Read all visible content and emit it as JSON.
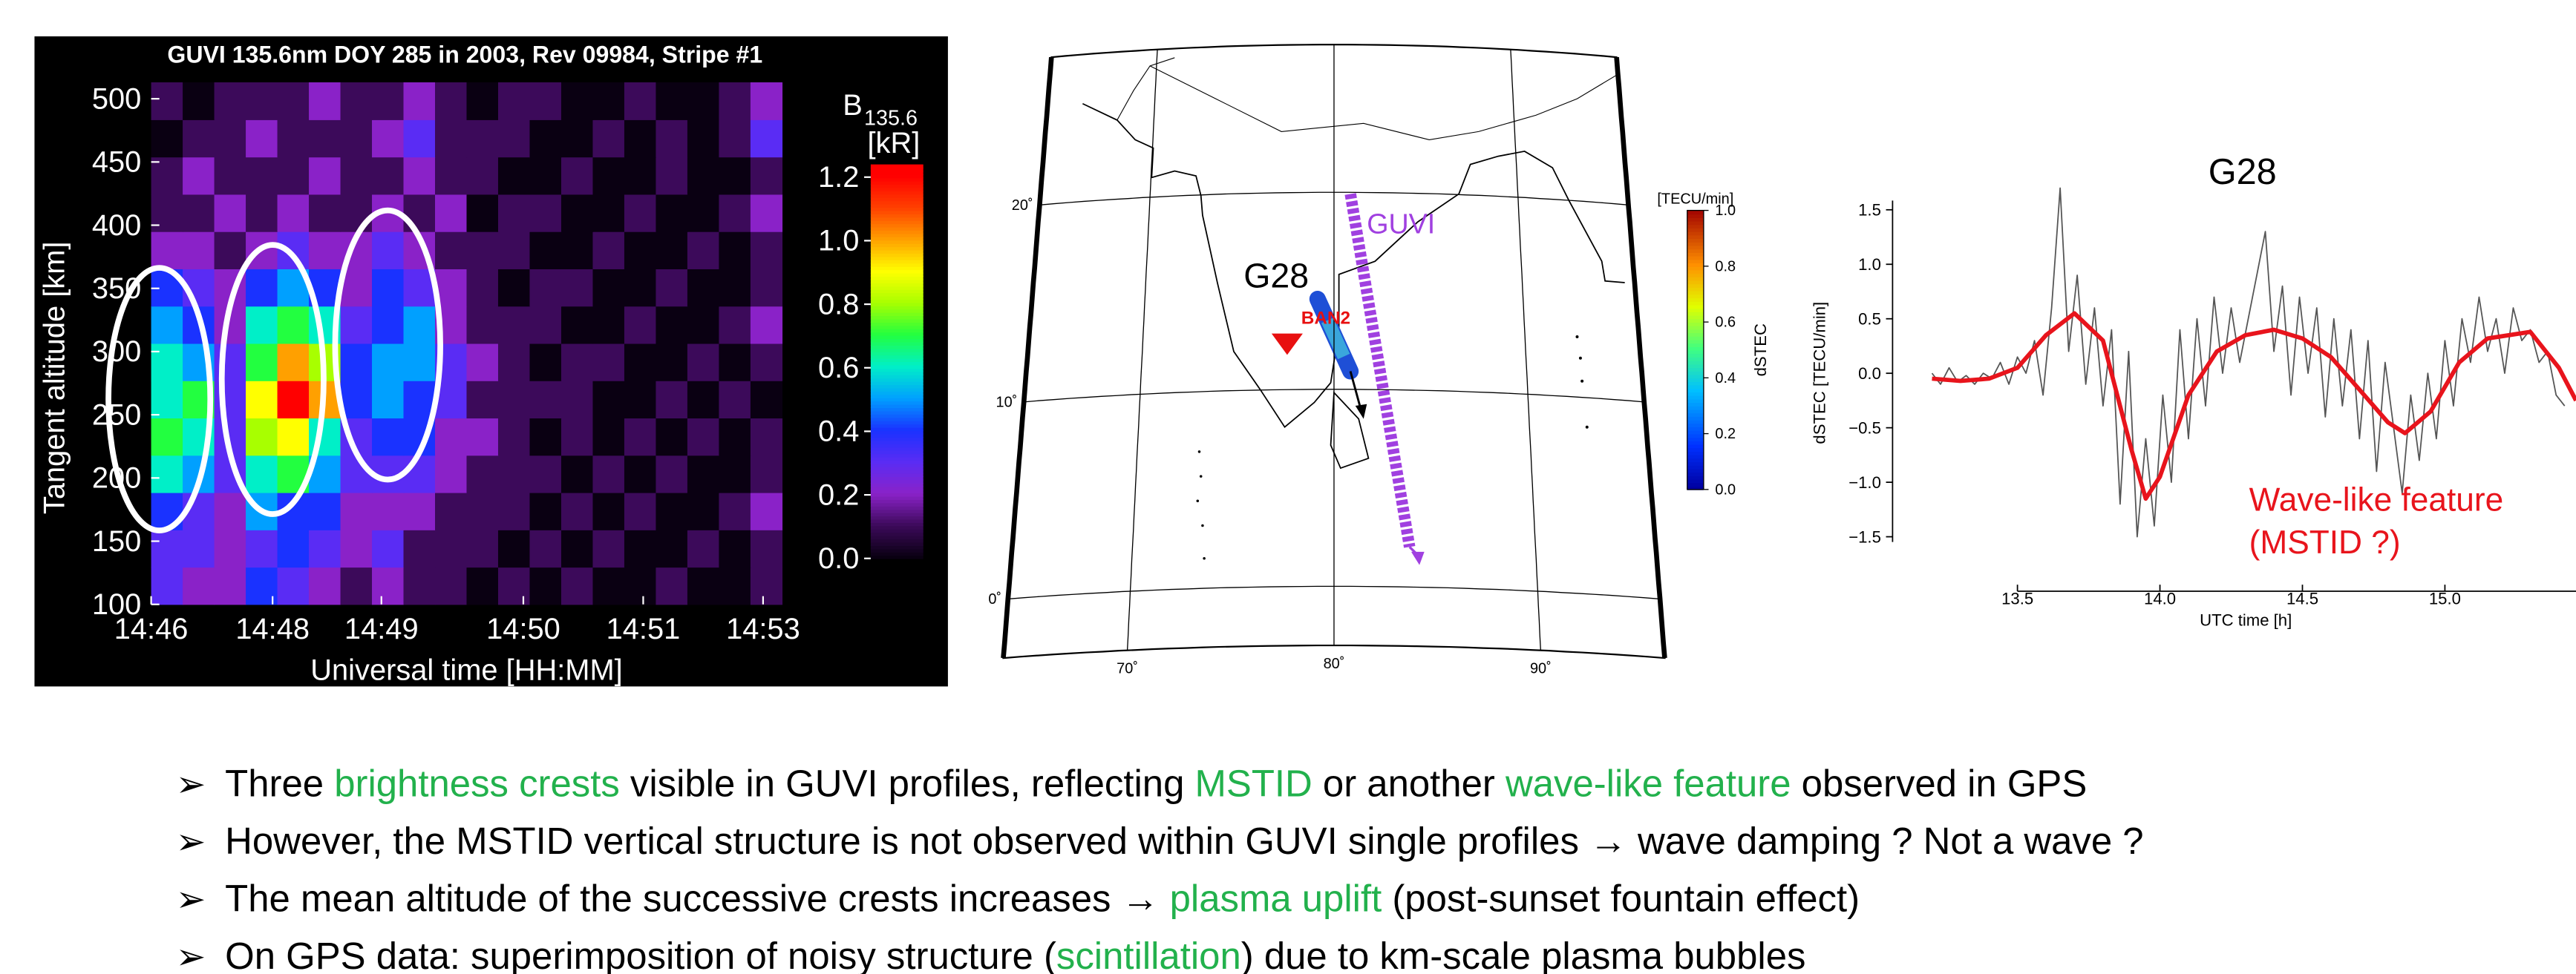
{
  "chart_data": [
    {
      "type": "heatmap",
      "title": "GUVI 135.6nm DOY 285 in 2003, Rev 09984, Stripe #1",
      "xlabel": "Universal time [HH:MM]",
      "ylabel": "Tangent altitude [km]",
      "xlim": [
        0,
        20
      ],
      "ylim": [
        100,
        513
      ],
      "xticks": [
        {
          "value": 0,
          "label": "14:46"
        },
        {
          "value": 3.85,
          "label": "14:48"
        },
        {
          "value": 7.3,
          "label": "14:49"
        },
        {
          "value": 11.8,
          "label": "14:50"
        },
        {
          "value": 15.6,
          "label": "14:51"
        },
        {
          "value": 19.4,
          "label": "14:53"
        }
      ],
      "yticks": [
        100,
        150,
        200,
        250,
        300,
        350,
        400,
        450,
        500
      ],
      "values": [
        [
          0.3,
          0.2,
          0.2,
          0.4,
          0.3,
          0.2,
          0.1,
          0.2,
          0.1,
          0.1,
          0.0,
          0.1,
          0.0,
          0.1,
          0.0,
          0.0,
          0.1,
          0.0,
          0.0,
          0.1
        ],
        [
          0.3,
          0.3,
          0.2,
          0.3,
          0.4,
          0.3,
          0.2,
          0.3,
          0.1,
          0.1,
          0.1,
          0.0,
          0.1,
          0.0,
          0.1,
          0.0,
          0.0,
          0.1,
          0.0,
          0.1
        ],
        [
          0.4,
          0.3,
          0.2,
          0.5,
          0.4,
          0.4,
          0.2,
          0.2,
          0.2,
          0.1,
          0.1,
          0.1,
          0.0,
          0.1,
          0.0,
          0.1,
          0.0,
          0.0,
          0.1,
          0.2
        ],
        [
          0.6,
          0.5,
          0.3,
          0.6,
          0.7,
          0.5,
          0.3,
          0.3,
          0.3,
          0.2,
          0.1,
          0.1,
          0.1,
          0.0,
          0.1,
          0.0,
          0.1,
          0.0,
          0.0,
          0.1
        ],
        [
          0.7,
          0.6,
          0.3,
          0.8,
          0.9,
          0.6,
          0.3,
          0.4,
          0.4,
          0.2,
          0.2,
          0.1,
          0.0,
          0.1,
          0.0,
          0.1,
          0.0,
          0.1,
          0.0,
          0.1
        ],
        [
          0.6,
          0.7,
          0.3,
          0.9,
          1.2,
          1.0,
          0.4,
          0.5,
          0.4,
          0.3,
          0.1,
          0.1,
          0.1,
          0.1,
          0.0,
          0.0,
          0.1,
          0.0,
          0.1,
          0.0
        ],
        [
          0.6,
          0.5,
          0.3,
          0.7,
          1.0,
          0.8,
          0.4,
          0.5,
          0.5,
          0.3,
          0.2,
          0.1,
          0.0,
          0.1,
          0.1,
          0.0,
          0.0,
          0.1,
          0.0,
          0.1
        ],
        [
          0.5,
          0.4,
          0.2,
          0.6,
          0.7,
          0.6,
          0.3,
          0.4,
          0.5,
          0.2,
          0.1,
          0.1,
          0.1,
          0.0,
          0.0,
          0.1,
          0.0,
          0.0,
          0.1,
          0.2
        ],
        [
          0.4,
          0.3,
          0.2,
          0.4,
          0.5,
          0.4,
          0.2,
          0.4,
          0.3,
          0.2,
          0.1,
          0.0,
          0.1,
          0.1,
          0.0,
          0.0,
          0.1,
          0.0,
          0.0,
          0.1
        ],
        [
          0.2,
          0.2,
          0.1,
          0.2,
          0.3,
          0.2,
          0.2,
          0.3,
          0.2,
          0.1,
          0.1,
          0.1,
          0.0,
          0.0,
          0.1,
          0.0,
          0.0,
          0.1,
          0.0,
          0.1
        ],
        [
          0.1,
          0.1,
          0.2,
          0.1,
          0.2,
          0.1,
          0.1,
          0.2,
          0.1,
          0.2,
          0.0,
          0.1,
          0.1,
          0.0,
          0.0,
          0.1,
          0.0,
          0.0,
          0.1,
          0.2
        ],
        [
          0.1,
          0.2,
          0.1,
          0.1,
          0.1,
          0.2,
          0.1,
          0.1,
          0.2,
          0.1,
          0.1,
          0.0,
          0.0,
          0.1,
          0.0,
          0.0,
          0.1,
          0.0,
          0.0,
          0.1
        ],
        [
          0.0,
          0.1,
          0.1,
          0.2,
          0.1,
          0.1,
          0.1,
          0.2,
          0.3,
          0.1,
          0.1,
          0.1,
          0.0,
          0.0,
          0.1,
          0.0,
          0.1,
          0.0,
          0.1,
          0.3
        ],
        [
          0.1,
          0.0,
          0.1,
          0.1,
          0.1,
          0.2,
          0.1,
          0.1,
          0.2,
          0.1,
          0.0,
          0.1,
          0.1,
          0.0,
          0.0,
          0.1,
          0.0,
          0.0,
          0.1,
          0.2
        ]
      ],
      "colorbar": {
        "label": "B",
        "label_sub": "135.6",
        "unit": "[kR]",
        "clim": [
          0,
          1.24
        ],
        "ticks": [
          {
            "value": 0,
            "label": "0.0"
          },
          0.2,
          0.4,
          0.6,
          0.8,
          {
            "value": 1,
            "label": "1.0"
          },
          1.2
        ]
      }
    },
    {
      "type": "map",
      "lonlim": [
        64,
        96
      ],
      "latlim": [
        -3,
        27.5
      ],
      "lonticks": [
        {
          "value": 70,
          "label": "70˚"
        },
        {
          "value": 80,
          "label": "80˚"
        },
        {
          "value": 90,
          "label": "90˚"
        }
      ],
      "latticks": [
        {
          "value": 0,
          "label": "0˚"
        },
        {
          "value": 10,
          "label": "10˚"
        },
        {
          "value": 20,
          "label": "20˚"
        }
      ],
      "labels": {
        "instrument": "GUVI",
        "satellite": "G28",
        "station": "BAN2"
      },
      "colorbar": {
        "label": "dSTEC",
        "unit": "[TECU/min]",
        "clim": [
          0,
          1
        ],
        "ticks": [
          {
            "value": 0,
            "label": "0.0"
          },
          0.2,
          0.4,
          0.6,
          0.8,
          {
            "value": 1,
            "label": "1.0"
          }
        ]
      }
    },
    {
      "type": "line",
      "title": "G28",
      "xlabel": "UTC time [h]",
      "ylabel": "dSTEC [TECU/min]",
      "xlim": [
        13.154,
        15.46
      ],
      "ylim": [
        -2.0,
        1.6
      ],
      "xticks": [
        13.5,
        {
          "value": 14,
          "label": "14.0"
        },
        14.5,
        {
          "value": 15,
          "label": "15.0"
        }
      ],
      "yticks": [
        1.5,
        {
          "value": 1,
          "label": "1.0"
        },
        0.5,
        {
          "value": 0,
          "label": "0.0"
        },
        {
          "value": -0.5,
          "label": "−0.5"
        },
        {
          "value": -1,
          "label": "−1.0"
        },
        {
          "value": -1.5,
          "label": "−1.5"
        }
      ],
      "series": [
        {
          "color": "#555555",
          "x": [
            13.2,
            13.23,
            13.26,
            13.29,
            13.32,
            13.35,
            13.38,
            13.41,
            13.44,
            13.47,
            13.5,
            13.53,
            13.56,
            13.59,
            13.62,
            13.65,
            13.68,
            13.71,
            13.74,
            13.77,
            13.8,
            13.83,
            13.86,
            13.89,
            13.92,
            13.95,
            13.98,
            14.01,
            14.04,
            14.07,
            14.1,
            14.13,
            14.16,
            14.19,
            14.22,
            14.25,
            14.28,
            14.31,
            14.34,
            14.37,
            14.4,
            14.43,
            14.46,
            14.49,
            14.52,
            14.55,
            14.58,
            14.61,
            14.64,
            14.67,
            14.7,
            14.73,
            14.76,
            14.79,
            14.82,
            14.85,
            14.88,
            14.91,
            14.94,
            14.97,
            15.0,
            15.03,
            15.06,
            15.09,
            15.12,
            15.15,
            15.18,
            15.21,
            15.24,
            15.27,
            15.3,
            15.33,
            15.36,
            15.39,
            15.42
          ],
          "values": [
            0.0,
            -0.1,
            0.05,
            -0.08,
            -0.02,
            -0.1,
            0.0,
            -0.05,
            0.1,
            -0.1,
            0.15,
            0.0,
            0.3,
            -0.2,
            0.6,
            1.7,
            0.2,
            0.9,
            -0.1,
            0.6,
            -0.3,
            0.4,
            -1.2,
            0.2,
            -1.5,
            -0.6,
            -1.4,
            -0.2,
            -1.0,
            0.4,
            -0.6,
            0.5,
            -0.3,
            0.7,
            0.0,
            0.6,
            0.1,
            0.5,
            0.9,
            1.3,
            0.2,
            0.8,
            -0.2,
            0.7,
            0.0,
            0.6,
            -0.4,
            0.5,
            -0.3,
            0.4,
            -0.6,
            0.3,
            -0.9,
            0.1,
            -0.5,
            -1.1,
            -0.2,
            -0.8,
            0.0,
            -0.6,
            0.3,
            -0.3,
            0.5,
            0.1,
            0.7,
            0.2,
            0.5,
            0.0,
            0.6,
            0.3,
            0.4,
            0.1,
            0.2,
            -0.2,
            -0.3
          ]
        },
        {
          "color": "#e8141c",
          "x": [
            13.2,
            13.3,
            13.4,
            13.5,
            13.6,
            13.7,
            13.8,
            13.9,
            13.95,
            14.0,
            14.1,
            14.2,
            14.3,
            14.4,
            14.5,
            14.6,
            14.7,
            14.8,
            14.86,
            14.95,
            15.05,
            15.15,
            15.3,
            15.4,
            15.46
          ],
          "values": [
            -0.05,
            -0.07,
            -0.05,
            0.05,
            0.35,
            0.55,
            0.3,
            -0.7,
            -1.15,
            -0.95,
            -0.2,
            0.2,
            0.35,
            0.4,
            0.32,
            0.15,
            -0.15,
            -0.45,
            -0.55,
            -0.35,
            0.1,
            0.32,
            0.38,
            0.05,
            -0.25
          ]
        }
      ],
      "annotations": [
        {
          "text": "Wave-like feature",
          "color": "#e8141c"
        },
        {
          "text": "(MSTID ?)",
          "color": "#e8141c"
        }
      ]
    }
  ],
  "bullets": {
    "marker": "➢",
    "items": [
      [
        {
          "text": "Three "
        },
        {
          "text": "brightness crests",
          "color": "#22b14c"
        },
        {
          "text": " visible in GUVI profiles, reflecting "
        },
        {
          "text": "MSTID",
          "color": "#22b14c"
        },
        {
          "text": " or another "
        },
        {
          "text": "wave-like feature",
          "color": "#22b14c"
        },
        {
          "text": " observed in GPS"
        }
      ],
      [
        {
          "text": "However, the MSTID vertical structure is not observed within GUVI single profiles → wave damping ? Not a wave ?"
        }
      ],
      [
        {
          "text": "The mean altitude of the successive crests increases → "
        },
        {
          "text": "plasma uplift",
          "color": "#22b14c"
        },
        {
          "text": " (post-sunset fountain effect)"
        }
      ],
      [
        {
          "text": "On GPS data: superimposition of noisy structure ("
        },
        {
          "text": "scintillation",
          "color": "#22b14c"
        },
        {
          "text": ") due to km-scale plasma bubbles"
        }
      ]
    ]
  }
}
